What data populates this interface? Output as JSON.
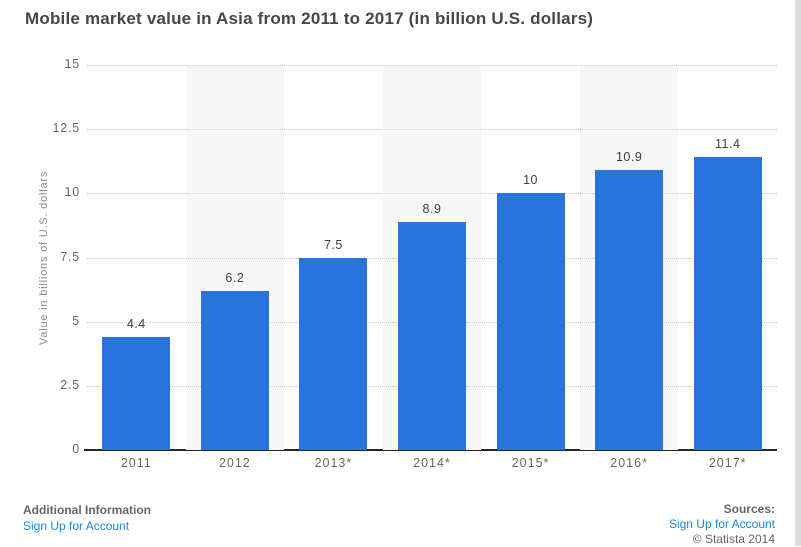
{
  "title": "Mobile market value in Asia from 2011 to 2017 (in billion U.S. dollars)",
  "chart_data": {
    "type": "bar",
    "title": "Mobile market value in Asia from 2011 to 2017 (in billion U.S. dollars)",
    "categories": [
      "2011",
      "2012",
      "2013*",
      "2014*",
      "2015*",
      "2016*",
      "2017*"
    ],
    "values": [
      4.4,
      6.2,
      7.5,
      8.9,
      10,
      10.9,
      11.4
    ],
    "value_labels": [
      "4.4",
      "6.2",
      "7.5",
      "8.9",
      "10",
      "10.9",
      "11.4"
    ],
    "xlabel": "",
    "ylabel": "Value in billions of U.S. dollars",
    "ylim": [
      0,
      15
    ],
    "yticks": [
      0,
      2.5,
      5,
      7.5,
      10,
      12.5,
      15
    ],
    "ytick_labels": [
      "0",
      "2.5",
      "5",
      "7.5",
      "10",
      "12.5",
      "15"
    ],
    "grid": "horizontal-dotted",
    "legend": "none",
    "bar_color": "#2a73dd",
    "alt_band_color": "#f7f7f7"
  },
  "footer": {
    "additional_info_label": "Additional Information",
    "signup_link_left": "Sign Up for Account",
    "sources_label": "Sources:",
    "signup_link_right": "Sign Up for Account",
    "copyright": "© Statista 2014"
  },
  "colors": {
    "bar_blue": "#2a73dd",
    "link_blue": "#1a86e0",
    "title_gray": "#474747",
    "axis_gray": "#666666",
    "band_gray": "#f7f7f7",
    "scroll_strip": "#d9dde2"
  }
}
